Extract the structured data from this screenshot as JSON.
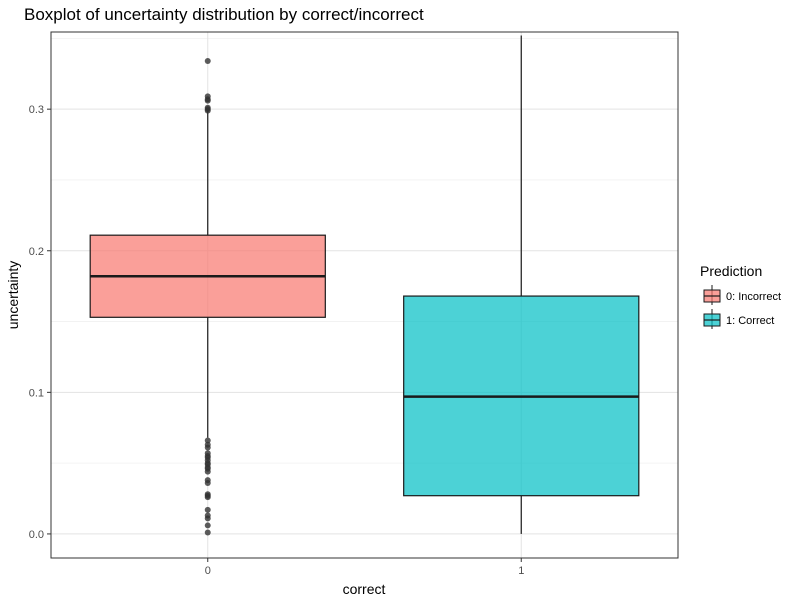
{
  "chart_data": {
    "type": "boxplot",
    "title": "Boxplot of uncertainty distribution by correct/incorrect",
    "xlabel": "correct",
    "ylabel": "uncertainty",
    "categories": [
      "0",
      "1"
    ],
    "ylim": [
      -0.017,
      0.3545
    ],
    "yticks": [
      0.0,
      0.1,
      0.2,
      0.3
    ],
    "ytick_labels": [
      "0.0",
      "0.1",
      "0.2",
      "0.3"
    ],
    "grid": true,
    "legend": {
      "title": "Prediction",
      "position": "right",
      "entries": [
        "0: Incorrect",
        "1: Correct"
      ]
    },
    "series": [
      {
        "name": "0: Incorrect",
        "category": "0",
        "color": "#F8766D",
        "min": 0.068,
        "q1": 0.153,
        "median": 0.182,
        "q3": 0.211,
        "max": 0.299,
        "outliers": [
          0.334,
          0.309,
          0.307,
          0.306,
          0.301,
          0.3,
          0.299,
          0.066,
          0.063,
          0.061,
          0.057,
          0.055,
          0.054,
          0.052,
          0.05,
          0.049,
          0.047,
          0.046,
          0.044,
          0.038,
          0.036,
          0.028,
          0.027,
          0.026,
          0.017,
          0.013,
          0.011,
          0.006,
          0.001
        ]
      },
      {
        "name": "1: Correct",
        "category": "1",
        "color": "#00BFC4",
        "min": 0.0,
        "q1": 0.027,
        "median": 0.097,
        "q3": 0.168,
        "max": 0.352,
        "outliers": []
      }
    ]
  }
}
